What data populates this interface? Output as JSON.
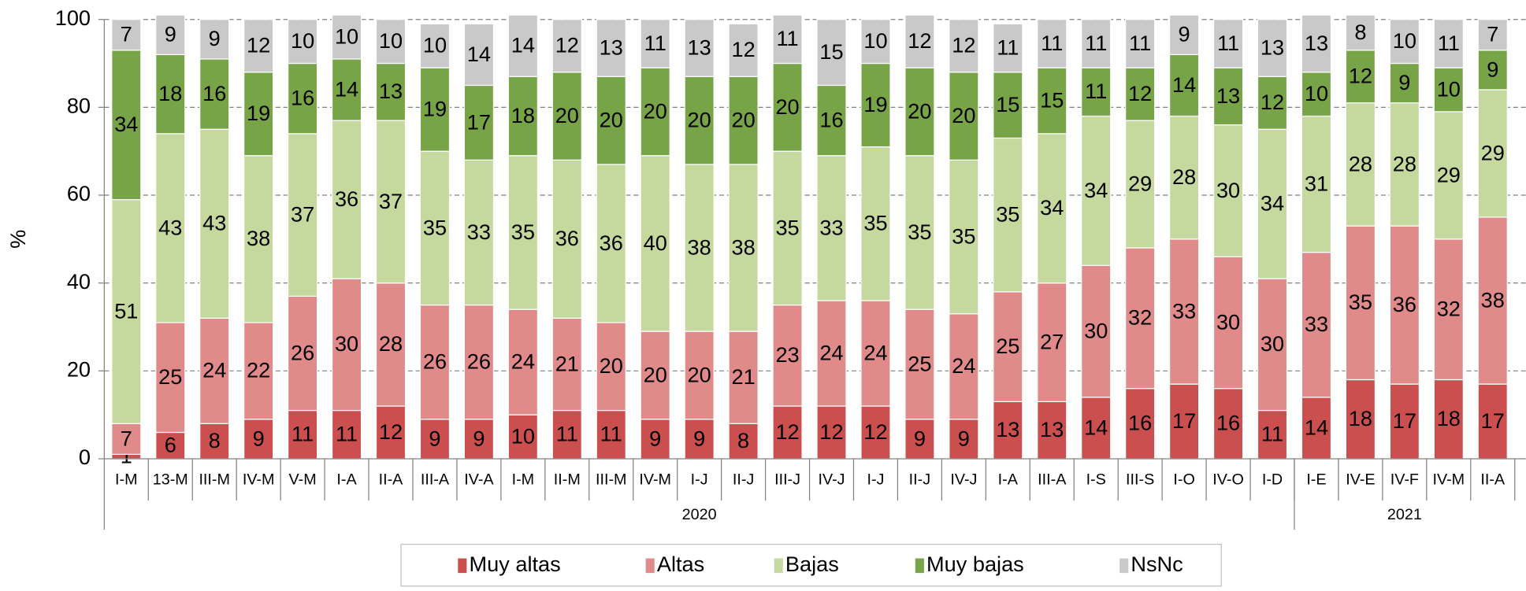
{
  "chart_data": {
    "type": "stacked-bar",
    "y_label": "%",
    "categories": [
      "I-M",
      "13-M",
      "III-M",
      "IV-M",
      "V-M",
      "I-A",
      "II-A",
      "III-A",
      "IV-A",
      "I-M",
      "II-M",
      "III-M",
      "IV-M",
      "I-J",
      "II-J",
      "III-J",
      "IV-J",
      "I-J",
      "II-J",
      "IV-J",
      "I-A",
      "III-A",
      "I-S",
      "III-S",
      "I-O",
      "IV-O",
      "I-D",
      "I-E",
      "IV-E",
      "IV-F",
      "IV-M",
      "II-A"
    ],
    "x_groups": [
      {
        "label": "2020",
        "span": 27
      },
      {
        "label": "2021",
        "span": 5
      }
    ],
    "series": [
      {
        "name": "Muy altas",
        "color": "#cc4f4f",
        "values": [
          1,
          6,
          8,
          9,
          11,
          11,
          12,
          9,
          9,
          10,
          11,
          11,
          9,
          9,
          8,
          12,
          12,
          12,
          9,
          9,
          13,
          13,
          14,
          16,
          17,
          16,
          11,
          14,
          18,
          17,
          18,
          17
        ]
      },
      {
        "name": "Altas",
        "color": "#e08b89",
        "values": [
          7,
          25,
          24,
          22,
          26,
          30,
          28,
          26,
          26,
          24,
          21,
          20,
          20,
          20,
          21,
          23,
          24,
          24,
          25,
          24,
          25,
          27,
          30,
          32,
          33,
          30,
          30,
          33,
          35,
          36,
          32,
          38
        ]
      },
      {
        "name": "Bajas",
        "color": "#c5d89d",
        "values": [
          51,
          43,
          43,
          38,
          37,
          36,
          37,
          35,
          33,
          35,
          36,
          36,
          40,
          38,
          38,
          35,
          33,
          35,
          35,
          35,
          35,
          34,
          34,
          29,
          28,
          30,
          34,
          31,
          28,
          28,
          29,
          29
        ]
      },
      {
        "name": "Muy bajas",
        "color": "#77a446",
        "values": [
          34,
          18,
          16,
          19,
          16,
          14,
          13,
          19,
          17,
          18,
          20,
          20,
          20,
          20,
          20,
          20,
          16,
          19,
          20,
          20,
          15,
          15,
          11,
          12,
          14,
          13,
          12,
          10,
          12,
          9,
          10,
          9
        ]
      },
      {
        "name": "NsNc",
        "color": "#c9c9c9",
        "values": [
          7,
          9,
          9,
          12,
          10,
          10,
          10,
          10,
          14,
          14,
          12,
          13,
          11,
          13,
          12,
          11,
          15,
          10,
          12,
          12,
          11,
          11,
          11,
          11,
          9,
          11,
          13,
          13,
          8,
          10,
          11,
          7
        ]
      }
    ],
    "ylim": [
      0,
      100
    ],
    "yticks": [
      0,
      20,
      40,
      60,
      80,
      100
    ],
    "grid": true,
    "legend": "bottom"
  }
}
